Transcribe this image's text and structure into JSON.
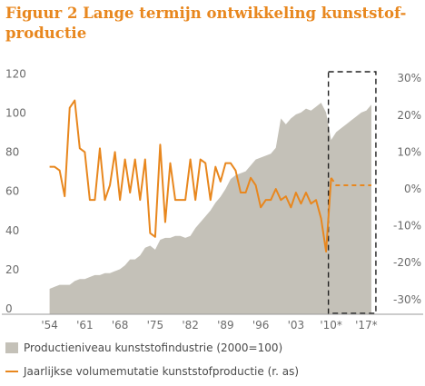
{
  "title_line1": "Figuur 2 Lange termijn ontwikkeling kunststof-",
  "title_line2": "productie",
  "colors": {
    "area": "#c4c1b8",
    "line": "#e8871e",
    "title": "#e8871e",
    "axis": "#6b6b6b"
  },
  "legend": {
    "area_label": "Productieniveau kunststofindustrie (2000=100)",
    "line_label": "Jaarlijkse volumemutatie kunststofproductie (r. as)"
  },
  "chart_data": {
    "type": "area",
    "x_tick_labels": [
      "'54",
      "'61",
      "'68",
      "'75",
      "'82",
      "'89",
      "'96",
      "'03",
      "'10*",
      "'17*"
    ],
    "x_tick_years": [
      1954,
      1961,
      1968,
      1975,
      1982,
      1989,
      1996,
      2003,
      2010,
      2017
    ],
    "xlim": [
      1951,
      2020
    ],
    "y_left_ticks": [
      "120",
      "100",
      "80",
      "60",
      "40",
      "20",
      "0"
    ],
    "y_left_values": [
      120,
      100,
      80,
      60,
      40,
      20,
      0
    ],
    "ylim_left": [
      0,
      128
    ],
    "y_right_ticks": [
      "30%",
      "20%",
      "10%",
      "0%",
      "-10%",
      "-20%",
      "-30%"
    ],
    "y_right_values": [
      30,
      20,
      10,
      0,
      -10,
      -20,
      -30
    ],
    "ylim_right": [
      -34,
      34
    ],
    "series": [
      {
        "name": "Productieniveau kunststofindustrie (2000=100)",
        "type": "area",
        "axis": "left",
        "x": [
          1954,
          1955,
          1956,
          1957,
          1958,
          1959,
          1960,
          1961,
          1962,
          1963,
          1964,
          1965,
          1966,
          1967,
          1968,
          1969,
          1970,
          1971,
          1972,
          1973,
          1974,
          1975,
          1976,
          1977,
          1978,
          1979,
          1980,
          1981,
          1982,
          1983,
          1984,
          1985,
          1986,
          1987,
          1988,
          1989,
          1990,
          1991,
          1992,
          1993,
          1994,
          1995,
          1996,
          1997,
          1998,
          1999,
          2000,
          2001,
          2002,
          2003,
          2004,
          2005,
          2006,
          2007,
          2008,
          2009,
          2010,
          2011,
          2012,
          2013,
          2014,
          2015,
          2016,
          2017,
          2018
        ],
        "values": [
          13,
          14,
          15,
          15,
          15,
          17,
          18,
          18,
          19,
          20,
          20,
          21,
          21,
          22,
          23,
          25,
          28,
          28,
          30,
          34,
          35,
          33,
          38,
          39,
          39,
          40,
          40,
          39,
          40,
          44,
          47,
          50,
          53,
          57,
          60,
          64,
          69,
          71,
          72,
          73,
          76,
          79,
          80,
          81,
          82,
          85,
          100,
          97,
          100,
          102,
          103,
          105,
          104,
          106,
          108,
          103,
          89,
          93,
          95,
          97,
          99,
          101,
          103,
          104,
          107
        ]
      },
      {
        "name": "Jaarlijkse volumemutatie kunststofproductie (r. as)",
        "type": "line",
        "axis": "right",
        "x": [
          1954,
          1955,
          1956,
          1957,
          1958,
          1959,
          1960,
          1961,
          1962,
          1963,
          1964,
          1965,
          1966,
          1967,
          1968,
          1969,
          1970,
          1971,
          1972,
          1973,
          1974,
          1975,
          1976,
          1977,
          1978,
          1979,
          1980,
          1981,
          1982,
          1983,
          1984,
          1985,
          1986,
          1987,
          1988,
          1989,
          1990,
          1991,
          1992,
          1993,
          1994,
          1995,
          1996,
          1997,
          1998,
          1999,
          2000,
          2001,
          2002,
          2003,
          2004,
          2005,
          2006,
          2007,
          2008,
          2009,
          2010
        ],
        "values": [
          6,
          6,
          5,
          -2,
          22,
          24,
          11,
          10,
          -3,
          -3,
          11,
          -3,
          1,
          10,
          -3,
          8,
          -1,
          8,
          -3,
          8,
          -12,
          -13,
          12,
          -9,
          7,
          -3,
          -3,
          -3,
          8,
          -3,
          8,
          7,
          -3,
          6,
          2,
          7,
          7,
          5,
          -1,
          -1,
          3,
          1,
          -5,
          -3,
          -3,
          0,
          -3,
          -2,
          -5,
          -1,
          -4,
          -1,
          -4,
          -3,
          -8,
          -17,
          3
        ],
        "dashed_segment": {
          "x": [
            2010,
            2011,
            2012,
            2013,
            2014,
            2015,
            2016,
            2017,
            2018
          ],
          "values": [
            3,
            1,
            1,
            1,
            1,
            1,
            1,
            1,
            1
          ]
        }
      }
    ],
    "forecast_box": {
      "from_year": 2010,
      "to_year": 2018,
      "style": "dashed"
    },
    "grid": false
  }
}
